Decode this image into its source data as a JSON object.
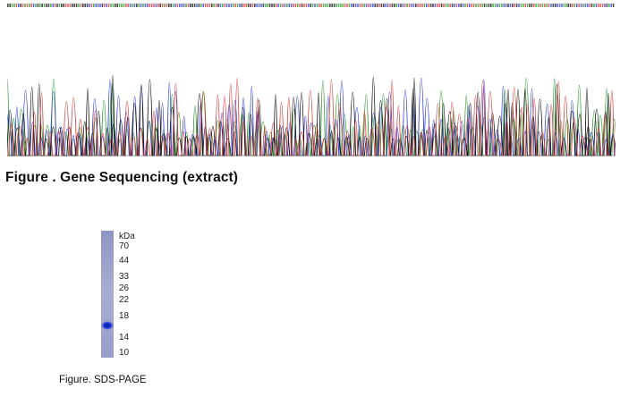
{
  "sequencing": {
    "caption": "Figure . Gene Sequencing (extract)",
    "base_colors": {
      "A": "#2a9a2a",
      "C": "#2f3fd8",
      "G": "#111111",
      "T": "#d93a3a"
    }
  },
  "sds_page": {
    "caption": "Figure. SDS-PAGE",
    "unit_label": "kDa",
    "markers": [
      "70",
      "44",
      "33",
      "26",
      "22",
      "18",
      "14",
      "10"
    ],
    "lane_color": "#a9acd2",
    "band_color": "#1a35d6"
  }
}
